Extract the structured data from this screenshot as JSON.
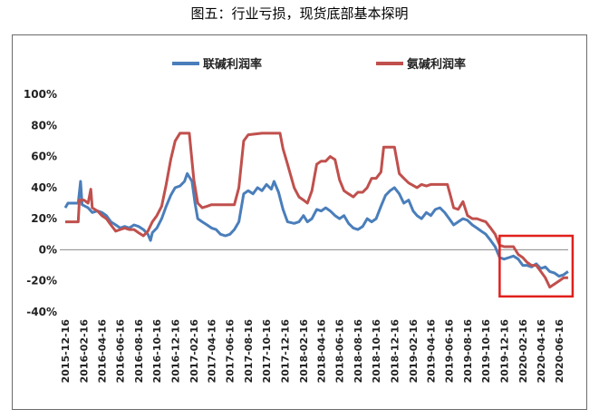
{
  "caption": "图五：行业亏损，现货底部基本探明",
  "chart_data": {
    "type": "line",
    "title": "",
    "xlabel": "",
    "ylabel": "",
    "ylim": [
      -40,
      100
    ],
    "yticks": [
      -40,
      -20,
      0,
      20,
      40,
      60,
      80,
      100
    ],
    "ytick_suffix": "%",
    "grid": false,
    "legend_position": "top",
    "x_tick_labels": [
      "2015-12-16",
      "2016-02-16",
      "2016-04-16",
      "2016-06-16",
      "2016-08-16",
      "2016-10-16",
      "2016-12-16",
      "2017-02-16",
      "2017-04-16",
      "2017-06-16",
      "2017-08-16",
      "2017-10-16",
      "2017-12-16",
      "2018-02-16",
      "2018-04-16",
      "2018-06-16",
      "2018-08-16",
      "2018-10-16",
      "2018-12-16",
      "2019-02-16",
      "2019-04-16",
      "2019-06-16",
      "2019-08-16",
      "2019-10-16",
      "2019-12-16",
      "2020-02-16",
      "2020-04-16",
      "2020-06-16"
    ],
    "highlight_box": {
      "x_from": "2019-12-01",
      "x_to": "2020-07-31",
      "y_from": -30,
      "y_to": 9,
      "color": "#e0201b"
    },
    "series": [
      {
        "name": "联碱利润率",
        "color": "#4a7ebb",
        "points": [
          [
            "2015-12-16",
            27
          ],
          [
            "2015-12-25",
            30
          ],
          [
            "2016-01-15",
            30
          ],
          [
            "2016-01-28",
            30
          ],
          [
            "2016-02-05",
            44
          ],
          [
            "2016-02-10",
            29
          ],
          [
            "2016-03-01",
            27
          ],
          [
            "2016-03-15",
            24
          ],
          [
            "2016-04-01",
            25
          ],
          [
            "2016-04-16",
            24
          ],
          [
            "2016-05-01",
            22
          ],
          [
            "2016-05-16",
            18
          ],
          [
            "2016-06-01",
            16
          ],
          [
            "2016-06-16",
            14
          ],
          [
            "2016-07-01",
            15
          ],
          [
            "2016-07-16",
            14
          ],
          [
            "2016-08-01",
            16
          ],
          [
            "2016-08-16",
            15
          ],
          [
            "2016-09-01",
            13
          ],
          [
            "2016-09-16",
            10
          ],
          [
            "2016-09-25",
            6
          ],
          [
            "2016-10-01",
            11
          ],
          [
            "2016-10-16",
            14
          ],
          [
            "2016-11-01",
            20
          ],
          [
            "2016-11-16",
            28
          ],
          [
            "2016-12-01",
            35
          ],
          [
            "2016-12-16",
            40
          ],
          [
            "2017-01-01",
            41
          ],
          [
            "2017-01-16",
            44
          ],
          [
            "2017-01-25",
            49
          ],
          [
            "2017-02-10",
            44
          ],
          [
            "2017-02-20",
            30
          ],
          [
            "2017-03-01",
            20
          ],
          [
            "2017-03-16",
            18
          ],
          [
            "2017-04-01",
            16
          ],
          [
            "2017-04-16",
            14
          ],
          [
            "2017-05-01",
            13
          ],
          [
            "2017-05-16",
            10
          ],
          [
            "2017-06-01",
            9
          ],
          [
            "2017-06-16",
            10
          ],
          [
            "2017-07-01",
            13
          ],
          [
            "2017-07-16",
            18
          ],
          [
            "2017-08-01",
            36
          ],
          [
            "2017-08-16",
            38
          ],
          [
            "2017-09-01",
            36
          ],
          [
            "2017-09-16",
            40
          ],
          [
            "2017-10-01",
            38
          ],
          [
            "2017-10-16",
            42
          ],
          [
            "2017-11-01",
            39
          ],
          [
            "2017-11-10",
            44
          ],
          [
            "2017-11-25",
            37
          ],
          [
            "2017-12-10",
            26
          ],
          [
            "2017-12-25",
            18
          ],
          [
            "2018-01-16",
            17
          ],
          [
            "2018-02-01",
            18
          ],
          [
            "2018-02-16",
            22
          ],
          [
            "2018-03-01",
            18
          ],
          [
            "2018-03-16",
            20
          ],
          [
            "2018-04-01",
            26
          ],
          [
            "2018-04-16",
            25
          ],
          [
            "2018-05-01",
            27
          ],
          [
            "2018-05-16",
            25
          ],
          [
            "2018-06-01",
            22
          ],
          [
            "2018-06-16",
            20
          ],
          [
            "2018-07-01",
            22
          ],
          [
            "2018-07-16",
            17
          ],
          [
            "2018-08-01",
            14
          ],
          [
            "2018-08-16",
            13
          ],
          [
            "2018-09-01",
            15
          ],
          [
            "2018-09-16",
            20
          ],
          [
            "2018-10-01",
            18
          ],
          [
            "2018-10-16",
            20
          ],
          [
            "2018-11-01",
            28
          ],
          [
            "2018-11-16",
            35
          ],
          [
            "2018-12-01",
            38
          ],
          [
            "2018-12-16",
            40
          ],
          [
            "2019-01-01",
            36
          ],
          [
            "2019-01-16",
            30
          ],
          [
            "2019-02-01",
            32
          ],
          [
            "2019-02-16",
            25
          ],
          [
            "2019-03-01",
            22
          ],
          [
            "2019-03-16",
            20
          ],
          [
            "2019-04-01",
            24
          ],
          [
            "2019-04-16",
            22
          ],
          [
            "2019-05-01",
            26
          ],
          [
            "2019-05-16",
            27
          ],
          [
            "2019-06-01",
            24
          ],
          [
            "2019-06-16",
            20
          ],
          [
            "2019-07-01",
            16
          ],
          [
            "2019-07-16",
            18
          ],
          [
            "2019-08-01",
            20
          ],
          [
            "2019-08-16",
            19
          ],
          [
            "2019-09-01",
            16
          ],
          [
            "2019-09-16",
            14
          ],
          [
            "2019-10-01",
            12
          ],
          [
            "2019-10-16",
            10
          ],
          [
            "2019-11-01",
            6
          ],
          [
            "2019-11-16",
            2
          ],
          [
            "2019-12-01",
            -5
          ],
          [
            "2019-12-16",
            -6
          ],
          [
            "2020-01-01",
            -5
          ],
          [
            "2020-01-16",
            -4
          ],
          [
            "2020-02-01",
            -6
          ],
          [
            "2020-02-16",
            -10
          ],
          [
            "2020-03-01",
            -10
          ],
          [
            "2020-03-16",
            -11
          ],
          [
            "2020-04-01",
            -9
          ],
          [
            "2020-04-16",
            -12
          ],
          [
            "2020-05-01",
            -11
          ],
          [
            "2020-05-16",
            -14
          ],
          [
            "2020-06-01",
            -15
          ],
          [
            "2020-06-16",
            -17
          ],
          [
            "2020-07-01",
            -16
          ],
          [
            "2020-07-16",
            -14
          ]
        ]
      },
      {
        "name": "氨碱利润率",
        "color": "#c0504d",
        "points": [
          [
            "2015-12-16",
            18
          ],
          [
            "2016-01-28",
            18
          ],
          [
            "2016-02-01",
            32
          ],
          [
            "2016-02-16",
            32
          ],
          [
            "2016-03-01",
            30
          ],
          [
            "2016-03-10",
            39
          ],
          [
            "2016-03-15",
            27
          ],
          [
            "2016-04-01",
            25
          ],
          [
            "2016-04-16",
            22
          ],
          [
            "2016-05-01",
            20
          ],
          [
            "2016-05-16",
            16
          ],
          [
            "2016-06-01",
            12
          ],
          [
            "2016-06-16",
            13
          ],
          [
            "2016-07-01",
            14
          ],
          [
            "2016-07-16",
            13
          ],
          [
            "2016-08-01",
            13
          ],
          [
            "2016-08-16",
            11
          ],
          [
            "2016-09-01",
            9
          ],
          [
            "2016-09-16",
            12
          ],
          [
            "2016-10-01",
            18
          ],
          [
            "2016-10-16",
            22
          ],
          [
            "2016-11-01",
            28
          ],
          [
            "2016-11-16",
            42
          ],
          [
            "2016-12-01",
            58
          ],
          [
            "2016-12-16",
            70
          ],
          [
            "2017-01-01",
            75
          ],
          [
            "2017-02-01",
            75
          ],
          [
            "2017-02-16",
            45
          ],
          [
            "2017-03-01",
            30
          ],
          [
            "2017-03-16",
            27
          ],
          [
            "2017-04-01",
            28
          ],
          [
            "2017-04-16",
            29
          ],
          [
            "2017-05-01",
            29
          ],
          [
            "2017-06-01",
            29
          ],
          [
            "2017-07-01",
            29
          ],
          [
            "2017-07-16",
            40
          ],
          [
            "2017-08-01",
            70
          ],
          [
            "2017-08-16",
            74
          ],
          [
            "2017-10-01",
            75
          ],
          [
            "2017-11-30",
            75
          ],
          [
            "2017-12-10",
            65
          ],
          [
            "2017-12-25",
            55
          ],
          [
            "2018-01-16",
            40
          ],
          [
            "2018-02-01",
            34
          ],
          [
            "2018-02-16",
            32
          ],
          [
            "2018-03-01",
            30
          ],
          [
            "2018-03-16",
            38
          ],
          [
            "2018-04-01",
            55
          ],
          [
            "2018-04-16",
            57
          ],
          [
            "2018-05-01",
            57
          ],
          [
            "2018-05-16",
            60
          ],
          [
            "2018-06-01",
            58
          ],
          [
            "2018-06-16",
            45
          ],
          [
            "2018-07-01",
            38
          ],
          [
            "2018-07-16",
            36
          ],
          [
            "2018-08-01",
            34
          ],
          [
            "2018-08-16",
            37
          ],
          [
            "2018-09-01",
            37
          ],
          [
            "2018-09-16",
            40
          ],
          [
            "2018-10-01",
            46
          ],
          [
            "2018-10-16",
            46
          ],
          [
            "2018-11-01",
            50
          ],
          [
            "2018-11-10",
            66
          ],
          [
            "2018-12-16",
            66
          ],
          [
            "2019-01-01",
            49
          ],
          [
            "2019-01-16",
            46
          ],
          [
            "2019-02-01",
            43
          ],
          [
            "2019-03-01",
            40
          ],
          [
            "2019-03-16",
            42
          ],
          [
            "2019-04-01",
            41
          ],
          [
            "2019-04-16",
            42
          ],
          [
            "2019-06-10",
            42
          ],
          [
            "2019-06-20",
            35
          ],
          [
            "2019-07-01",
            27
          ],
          [
            "2019-07-16",
            26
          ],
          [
            "2019-08-01",
            31
          ],
          [
            "2019-08-16",
            22
          ],
          [
            "2019-09-01",
            20
          ],
          [
            "2019-09-16",
            20
          ],
          [
            "2019-10-01",
            19
          ],
          [
            "2019-10-16",
            18
          ],
          [
            "2019-11-01",
            14
          ],
          [
            "2019-11-16",
            10
          ],
          [
            "2019-12-01",
            3
          ],
          [
            "2019-12-16",
            2
          ],
          [
            "2020-01-01",
            2
          ],
          [
            "2020-01-16",
            2
          ],
          [
            "2020-02-01",
            -3
          ],
          [
            "2020-02-16",
            -5
          ],
          [
            "2020-03-01",
            -8
          ],
          [
            "2020-03-16",
            -10
          ],
          [
            "2020-04-01",
            -10
          ],
          [
            "2020-04-16",
            -14
          ],
          [
            "2020-05-01",
            -18
          ],
          [
            "2020-05-16",
            -24
          ],
          [
            "2020-06-01",
            -22
          ],
          [
            "2020-06-16",
            -20
          ],
          [
            "2020-07-01",
            -18
          ],
          [
            "2020-07-16",
            -18
          ]
        ]
      }
    ]
  }
}
